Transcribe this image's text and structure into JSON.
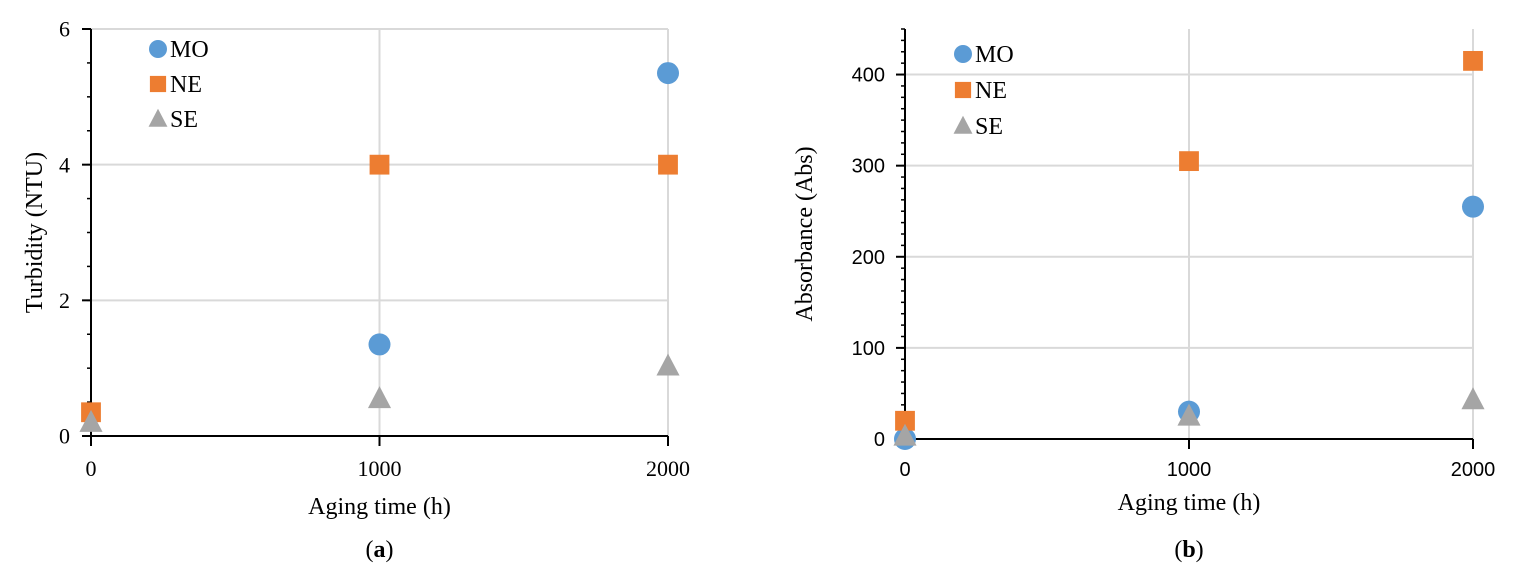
{
  "chart_data": [
    {
      "type": "scatter",
      "panel_label": "a",
      "xlabel": "Aging time (h)",
      "ylabel": "Turbidity (NTU)",
      "xlim": [
        0,
        2000
      ],
      "ylim": [
        0,
        6
      ],
      "x_ticks": [
        0,
        1000,
        2000
      ],
      "y_ticks": [
        0,
        2,
        4,
        6
      ],
      "grid": true,
      "legend_position": "top-left",
      "series": [
        {
          "name": "MO",
          "marker": "circle",
          "color": "#5b9bd5",
          "x": [
            1000,
            2000
          ],
          "y": [
            1.35,
            5.35
          ]
        },
        {
          "name": "NE",
          "marker": "square",
          "color": "#ed7d31",
          "x": [
            0,
            1000,
            2000
          ],
          "y": [
            0.35,
            4.0,
            4.0
          ]
        },
        {
          "name": "SE",
          "marker": "triangle",
          "color": "#a5a5a5",
          "x": [
            0,
            1000,
            2000
          ],
          "y": [
            0.2,
            0.55,
            1.03
          ]
        }
      ]
    },
    {
      "type": "scatter",
      "panel_label": "b",
      "xlabel": "Aging time (h)",
      "ylabel": "Absorbance (Abs)",
      "xlim": [
        0,
        2000
      ],
      "ylim": [
        0,
        450
      ],
      "x_ticks": [
        0,
        1000,
        2000
      ],
      "y_ticks": [
        0,
        100,
        200,
        300,
        400
      ],
      "grid": true,
      "legend_position": "top-left",
      "series": [
        {
          "name": "MO",
          "marker": "circle",
          "color": "#5b9bd5",
          "x": [
            0,
            1000,
            2000
          ],
          "y": [
            0,
            30,
            255
          ]
        },
        {
          "name": "NE",
          "marker": "square",
          "color": "#ed7d31",
          "x": [
            0,
            1000,
            2000
          ],
          "y": [
            20,
            305,
            415
          ]
        },
        {
          "name": "SE",
          "marker": "triangle",
          "color": "#a5a5a5",
          "x": [
            0,
            1000,
            2000
          ],
          "y": [
            3,
            25,
            43
          ]
        }
      ]
    }
  ]
}
